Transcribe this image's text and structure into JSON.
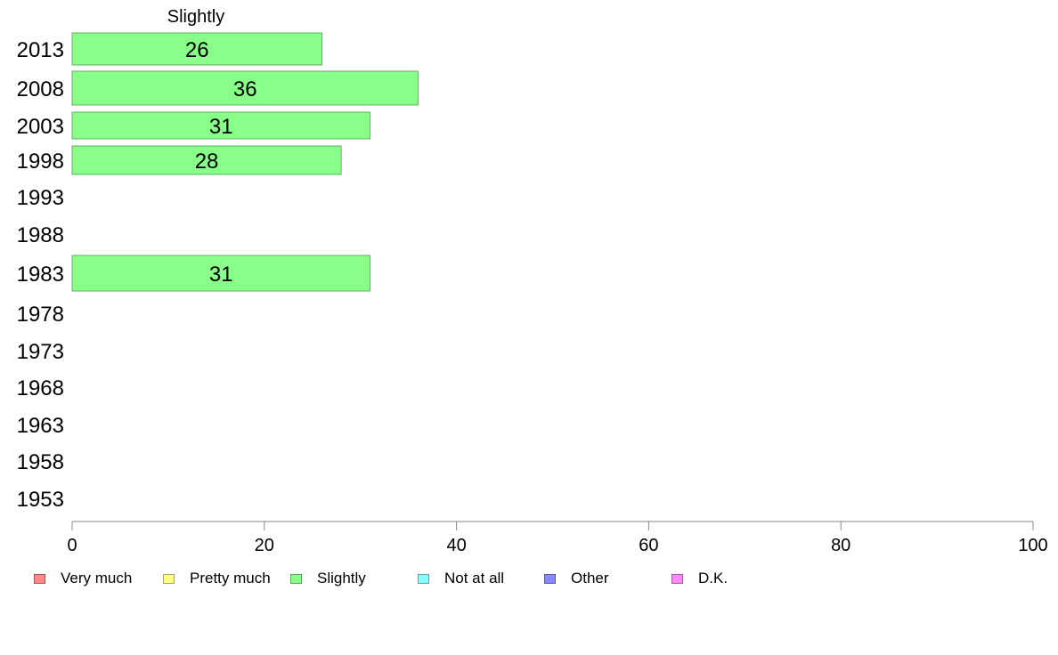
{
  "chart_data": {
    "type": "bar",
    "orientation": "horizontal",
    "title": "Slightly",
    "categories": [
      "2013",
      "2008",
      "2003",
      "1998",
      "1993",
      "1988",
      "1983",
      "1978",
      "1973",
      "1968",
      "1963",
      "1958",
      "1953"
    ],
    "series": [
      {
        "name": "Slightly",
        "values": [
          26,
          36,
          31,
          28,
          null,
          null,
          31,
          null,
          null,
          null,
          null,
          null,
          null
        ],
        "color": "#88ff88"
      }
    ],
    "xlim": [
      0,
      100
    ],
    "xticks": [
      "0",
      "20",
      "40",
      "60",
      "80",
      "100"
    ],
    "grid": false,
    "legend_position": "bottom",
    "legend": [
      {
        "label": "Very much",
        "color": "#ff8888"
      },
      {
        "label": "Pretty much",
        "color": "#ffff88"
      },
      {
        "label": "Slightly",
        "color": "#88ff88"
      },
      {
        "label": "Not at all",
        "color": "#88ffff"
      },
      {
        "label": "Other",
        "color": "#8888ff"
      },
      {
        "label": "D.K.",
        "color": "#ff88ff"
      }
    ]
  }
}
